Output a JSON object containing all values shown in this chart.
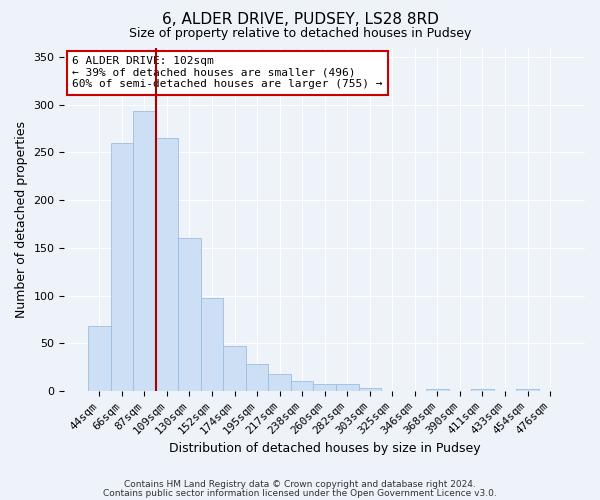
{
  "title": "6, ALDER DRIVE, PUDSEY, LS28 8RD",
  "subtitle": "Size of property relative to detached houses in Pudsey",
  "xlabel": "Distribution of detached houses by size in Pudsey",
  "ylabel": "Number of detached properties",
  "bar_labels": [
    "44sqm",
    "66sqm",
    "87sqm",
    "109sqm",
    "130sqm",
    "152sqm",
    "174sqm",
    "195sqm",
    "217sqm",
    "238sqm",
    "260sqm",
    "282sqm",
    "303sqm",
    "325sqm",
    "346sqm",
    "368sqm",
    "390sqm",
    "411sqm",
    "433sqm",
    "454sqm",
    "476sqm"
  ],
  "bar_values": [
    68,
    260,
    293,
    265,
    160,
    98,
    47,
    28,
    18,
    10,
    7,
    7,
    3,
    0,
    0,
    2,
    0,
    2,
    0,
    2,
    0
  ],
  "bar_color": "#ccdff5",
  "bar_edge_color": "#9bbfdf",
  "vline_x_index": 3,
  "vline_color": "#aa0000",
  "annotation_title": "6 ALDER DRIVE: 102sqm",
  "annotation_line2": "← 39% of detached houses are smaller (496)",
  "annotation_line3": "60% of semi-detached houses are larger (755) →",
  "annotation_box_facecolor": "#ffffff",
  "annotation_box_edgecolor": "#cc0000",
  "ylim": [
    0,
    360
  ],
  "yticks": [
    0,
    50,
    100,
    150,
    200,
    250,
    300,
    350
  ],
  "footer1": "Contains HM Land Registry data © Crown copyright and database right 2024.",
  "footer2": "Contains public sector information licensed under the Open Government Licence v3.0.",
  "bg_color": "#eef2f9",
  "grid_color": "#ffffff",
  "title_fontsize": 11,
  "subtitle_fontsize": 9,
  "axis_label_fontsize": 9,
  "tick_fontsize": 8,
  "annotation_fontsize": 8,
  "footer_fontsize": 6.5
}
